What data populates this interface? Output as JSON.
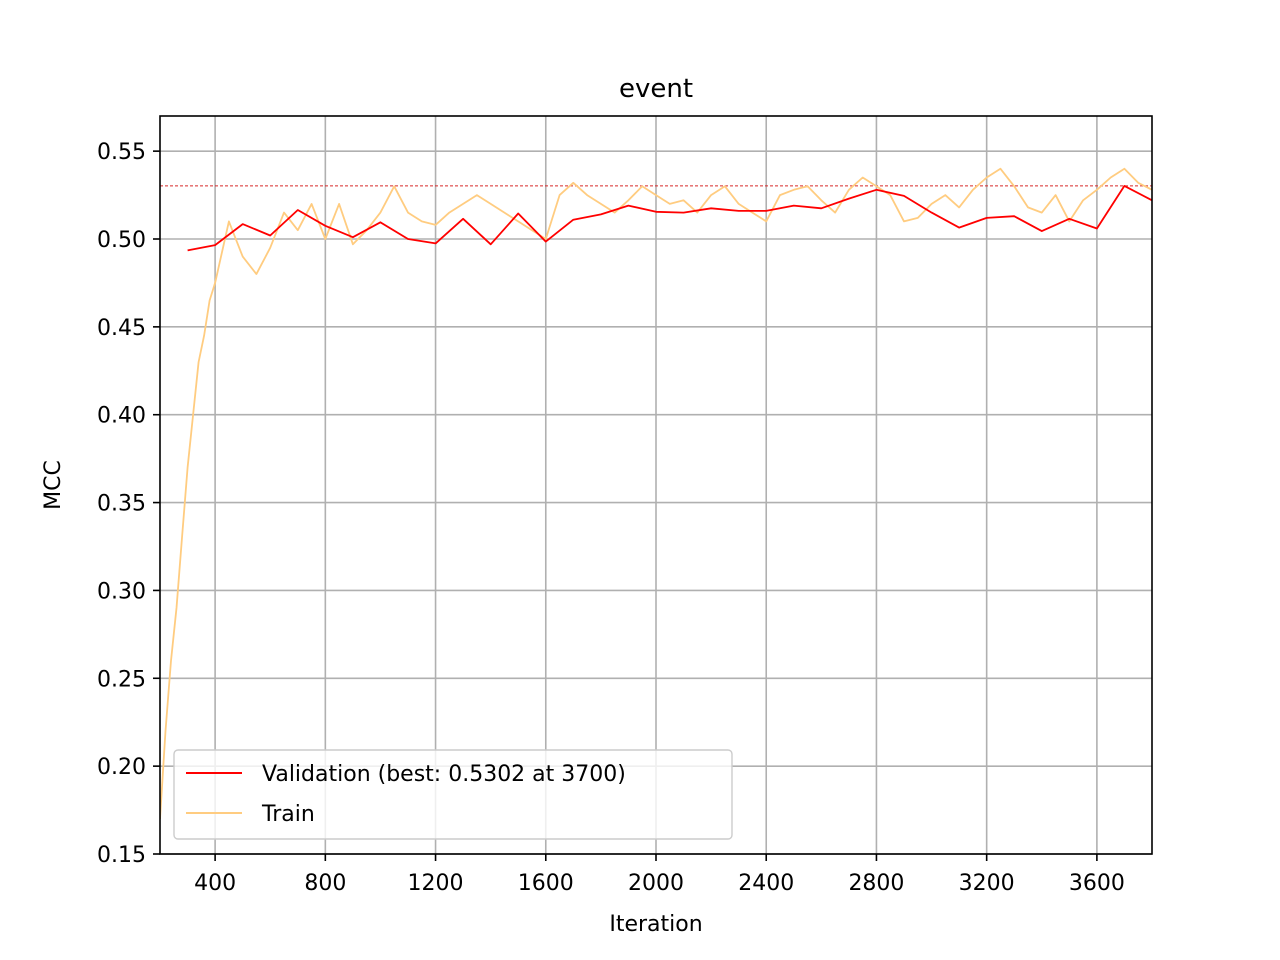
{
  "chart_data": {
    "type": "line",
    "title": "event",
    "xlabel": "Iteration",
    "ylabel": "MCC",
    "xlim": [
      200,
      3800
    ],
    "ylim": [
      0.15,
      0.57
    ],
    "xticks": [
      400,
      800,
      1200,
      1600,
      2000,
      2400,
      2800,
      3200,
      3600
    ],
    "yticks": [
      0.15,
      0.2,
      0.25,
      0.3,
      0.35,
      0.4,
      0.45,
      0.5,
      0.55
    ],
    "xtick_labels": [
      "400",
      "800",
      "1200",
      "1600",
      "2000",
      "2400",
      "2800",
      "3200",
      "3600"
    ],
    "ytick_labels": [
      "0.15",
      "0.20",
      "0.25",
      "0.30",
      "0.35",
      "0.40",
      "0.45",
      "0.50",
      "0.55"
    ],
    "grid": true,
    "legend_position": "lower-left",
    "best_reference_line": {
      "y": 0.5302,
      "color": "#d62728",
      "style": "dashed"
    },
    "series": [
      {
        "name": "Validation (best: 0.5302 at 3700)",
        "color": "#ff0000",
        "x": [
          300,
          400,
          500,
          600,
          700,
          800,
          900,
          1000,
          1100,
          1200,
          1300,
          1400,
          1500,
          1600,
          1700,
          1800,
          1900,
          2000,
          2100,
          2200,
          2300,
          2400,
          2500,
          2600,
          2700,
          2800,
          2900,
          3000,
          3100,
          3200,
          3300,
          3400,
          3500,
          3600,
          3700,
          3800
        ],
        "y": [
          0.4935,
          0.4965,
          0.5085,
          0.502,
          0.5165,
          0.5075,
          0.501,
          0.5095,
          0.5,
          0.4975,
          0.5115,
          0.497,
          0.5145,
          0.4985,
          0.511,
          0.514,
          0.519,
          0.5155,
          0.515,
          0.5175,
          0.516,
          0.516,
          0.519,
          0.5175,
          0.523,
          0.528,
          0.5245,
          0.515,
          0.5065,
          0.512,
          0.513,
          0.5045,
          0.5115,
          0.506,
          0.5302,
          0.522
        ]
      },
      {
        "name": "Train",
        "color": "#ffcc80",
        "x": [
          200,
          220,
          240,
          260,
          280,
          300,
          320,
          340,
          360,
          380,
          400,
          450,
          500,
          550,
          600,
          650,
          700,
          750,
          800,
          850,
          900,
          950,
          1000,
          1050,
          1100,
          1150,
          1200,
          1250,
          1300,
          1350,
          1400,
          1450,
          1500,
          1550,
          1600,
          1650,
          1700,
          1750,
          1800,
          1850,
          1900,
          1950,
          2000,
          2050,
          2100,
          2150,
          2200,
          2250,
          2300,
          2350,
          2400,
          2450,
          2500,
          2550,
          2600,
          2650,
          2700,
          2750,
          2800,
          2850,
          2900,
          2950,
          3000,
          3050,
          3100,
          3150,
          3200,
          3250,
          3300,
          3350,
          3400,
          3450,
          3500,
          3550,
          3600,
          3650,
          3700,
          3750,
          3800
        ],
        "y": [
          0.17,
          0.22,
          0.26,
          0.29,
          0.33,
          0.37,
          0.4,
          0.43,
          0.445,
          0.465,
          0.475,
          0.51,
          0.49,
          0.48,
          0.495,
          0.515,
          0.505,
          0.52,
          0.5,
          0.52,
          0.497,
          0.505,
          0.515,
          0.53,
          0.515,
          0.51,
          0.508,
          0.515,
          0.52,
          0.525,
          0.52,
          0.515,
          0.51,
          0.505,
          0.5,
          0.525,
          0.532,
          0.525,
          0.52,
          0.515,
          0.522,
          0.53,
          0.525,
          0.52,
          0.522,
          0.515,
          0.525,
          0.53,
          0.52,
          0.515,
          0.51,
          0.525,
          0.528,
          0.53,
          0.522,
          0.515,
          0.528,
          0.535,
          0.53,
          0.525,
          0.51,
          0.512,
          0.52,
          0.525,
          0.518,
          0.528,
          0.535,
          0.54,
          0.53,
          0.518,
          0.515,
          0.525,
          0.51,
          0.522,
          0.528,
          0.535,
          0.54,
          0.532,
          0.528
        ]
      }
    ]
  }
}
